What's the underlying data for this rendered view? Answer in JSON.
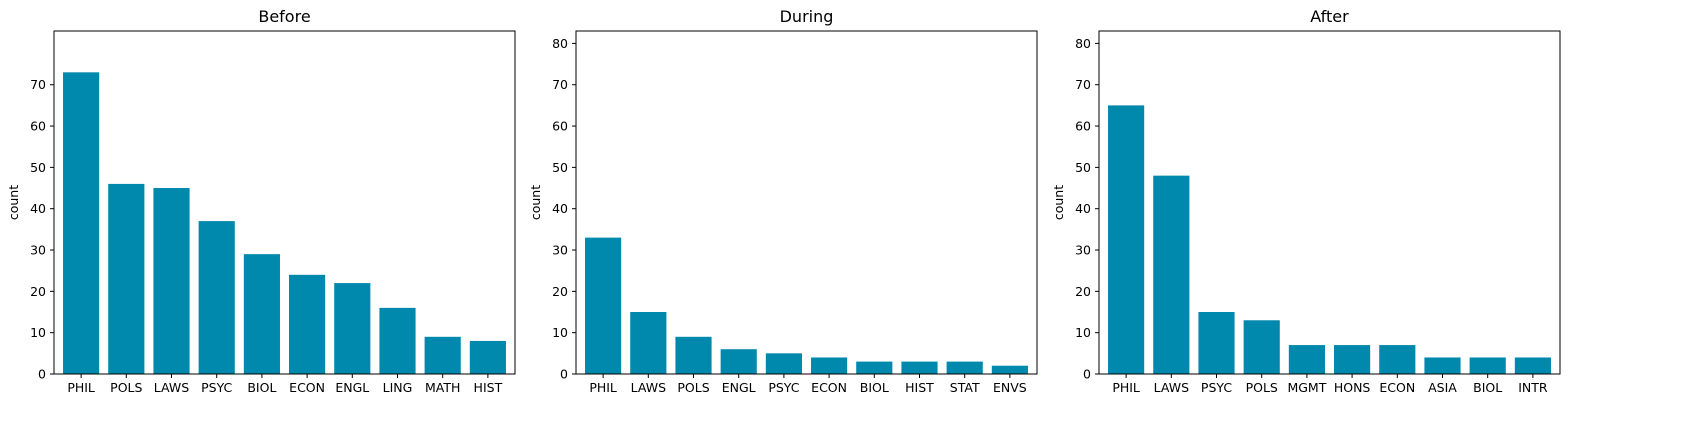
{
  "chart_data": [
    {
      "type": "bar",
      "title": "Before",
      "xlabel": "",
      "ylabel": "count",
      "ylim": [
        0,
        83
      ],
      "yticks": [
        0,
        10,
        20,
        30,
        40,
        50,
        60,
        70
      ],
      "grid": false,
      "color": "#0088ad",
      "categories": [
        "PHIL",
        "POLS",
        "LAWS",
        "PSYC",
        "BIOL",
        "ECON",
        "ENGL",
        "LING",
        "MATH",
        "HIST"
      ],
      "values": [
        73,
        46,
        45,
        37,
        29,
        24,
        22,
        16,
        9,
        8
      ]
    },
    {
      "type": "bar",
      "title": "During",
      "xlabel": "",
      "ylabel": "count",
      "ylim": [
        0,
        83
      ],
      "yticks": [
        0,
        10,
        20,
        30,
        40,
        50,
        60,
        70,
        80
      ],
      "grid": false,
      "color": "#0088ad",
      "categories": [
        "PHIL",
        "LAWS",
        "POLS",
        "ENGL",
        "PSYC",
        "ECON",
        "BIOL",
        "HIST",
        "STAT",
        "ENVS"
      ],
      "values": [
        33,
        15,
        9,
        6,
        5,
        4,
        3,
        3,
        3,
        2
      ]
    },
    {
      "type": "bar",
      "title": "After",
      "xlabel": "",
      "ylabel": "count",
      "ylim": [
        0,
        83
      ],
      "yticks": [
        0,
        10,
        20,
        30,
        40,
        50,
        60,
        70,
        80
      ],
      "grid": false,
      "color": "#0088ad",
      "categories": [
        "PHIL",
        "LAWS",
        "PSYC",
        "POLS",
        "MGMT",
        "HONS",
        "ECON",
        "ASIA",
        "BIOL",
        "INTR"
      ],
      "values": [
        65,
        48,
        15,
        13,
        7,
        7,
        7,
        4,
        4,
        4
      ]
    }
  ]
}
